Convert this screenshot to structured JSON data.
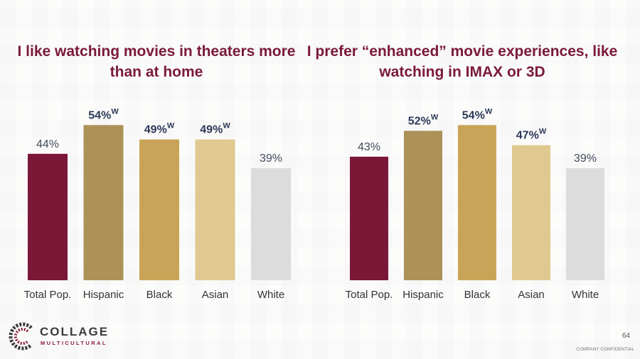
{
  "chart_data": [
    {
      "type": "bar",
      "title": "I like watching movies in theaters more than at home",
      "categories": [
        "Total Pop.",
        "Hispanic",
        "Black",
        "Asian",
        "White"
      ],
      "values": [
        44,
        54,
        49,
        49,
        39
      ],
      "value_labels": [
        "44%",
        "54%",
        "49%",
        "49%",
        "39%"
      ],
      "superscripts": [
        "",
        "W",
        "W",
        "W",
        ""
      ],
      "bold_labels": [
        false,
        true,
        true,
        true,
        false
      ],
      "colors": [
        "#7b1737",
        "#ac9158",
        "#c9a458",
        "#e0c990",
        "#dcdcdc"
      ],
      "ylim": [
        0,
        60
      ],
      "grid": false
    },
    {
      "type": "bar",
      "title": "I prefer “enhanced” movie experiences, like watching in IMAX or 3D",
      "categories": [
        "Total Pop.",
        "Hispanic",
        "Black",
        "Asian",
        "White"
      ],
      "values": [
        43,
        52,
        54,
        47,
        39
      ],
      "value_labels": [
        "43%",
        "52%",
        "54%",
        "47%",
        "39%"
      ],
      "superscripts": [
        "",
        "W",
        "W",
        "W",
        ""
      ],
      "bold_labels": [
        false,
        true,
        true,
        true,
        false
      ],
      "colors": [
        "#7b1737",
        "#ac9158",
        "#c9a458",
        "#e0c990",
        "#dcdcdc"
      ],
      "ylim": [
        0,
        60
      ],
      "grid": false
    }
  ],
  "footer": {
    "logo_main": "COLLAGE",
    "logo_sub": "MULTICULTURAL",
    "page_number": "64",
    "confidential": "COMPANY CONFIDENTIAL"
  }
}
